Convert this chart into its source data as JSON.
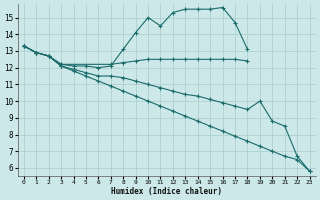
{
  "xlabel": "Humidex (Indice chaleur)",
  "background_color": "#cce8e8",
  "grid_color": "#aacccc",
  "line_color": "#1a6b6b",
  "xlim": [
    -0.5,
    23.5
  ],
  "ylim": [
    5.5,
    15.8
  ],
  "xticks": [
    0,
    1,
    2,
    3,
    4,
    5,
    6,
    7,
    8,
    9,
    10,
    11,
    12,
    13,
    14,
    15,
    16,
    17,
    18,
    19,
    20,
    21,
    22,
    23
  ],
  "yticks": [
    6,
    7,
    8,
    9,
    10,
    11,
    12,
    13,
    14,
    15
  ],
  "series": [
    {
      "x": [
        0,
        1,
        2,
        3,
        4,
        5,
        6,
        7,
        8,
        9,
        10,
        11,
        12,
        13,
        14,
        15,
        16,
        17,
        18
      ],
      "y": [
        13.3,
        12.9,
        12.7,
        12.2,
        12.1,
        12.1,
        12.0,
        12.1,
        13.1,
        14.1,
        15.0,
        14.5,
        15.3,
        15.5,
        15.5,
        15.5,
        15.6,
        14.7,
        13.1
      ]
    },
    {
      "x": [
        0,
        1,
        2,
        3,
        7,
        8,
        9,
        10,
        11,
        12,
        13,
        14,
        15,
        16,
        17,
        18
      ],
      "y": [
        13.3,
        12.9,
        12.7,
        12.2,
        12.2,
        12.3,
        12.4,
        12.5,
        12.5,
        12.5,
        12.5,
        12.5,
        12.5,
        12.5,
        12.5,
        12.4
      ]
    },
    {
      "x": [
        0,
        1,
        2,
        3,
        4,
        5,
        6,
        7,
        8,
        9,
        10,
        11,
        12,
        13,
        14,
        15,
        16,
        17,
        18,
        19,
        20,
        21,
        22,
        23
      ],
      "y": [
        13.3,
        12.9,
        12.7,
        12.1,
        11.9,
        11.7,
        11.5,
        11.5,
        11.4,
        11.2,
        11.0,
        10.8,
        10.6,
        10.4,
        10.3,
        10.1,
        9.9,
        9.7,
        9.5,
        10.0,
        8.8,
        8.5,
        6.7,
        5.8
      ]
    },
    {
      "x": [
        0,
        1,
        2,
        3,
        4,
        5,
        6,
        7,
        8,
        9,
        10,
        11,
        12,
        13,
        14,
        15,
        16,
        17,
        18,
        19,
        20,
        21,
        22,
        23
      ],
      "y": [
        13.3,
        12.9,
        12.7,
        12.1,
        11.8,
        11.5,
        11.2,
        10.9,
        10.6,
        10.3,
        10.0,
        9.7,
        9.4,
        9.1,
        8.8,
        8.5,
        8.2,
        7.9,
        7.6,
        7.3,
        7.0,
        6.7,
        6.5,
        5.8
      ]
    }
  ]
}
